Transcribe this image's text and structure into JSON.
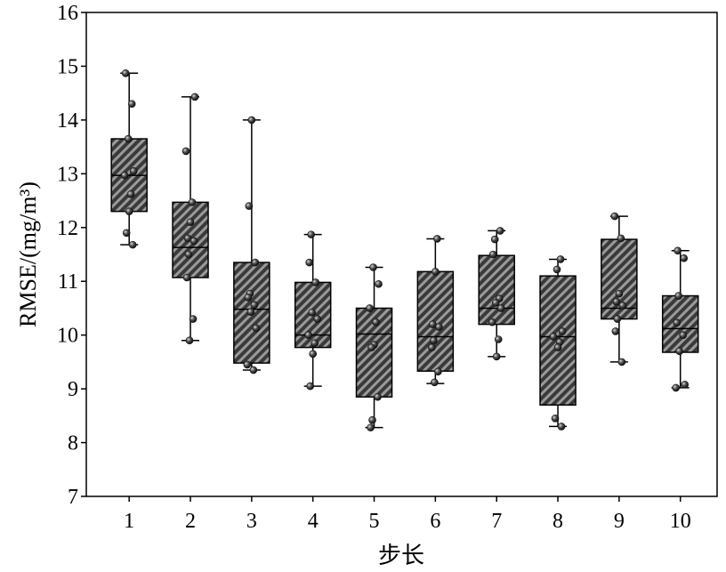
{
  "chart_data": {
    "type": "box",
    "xlabel": "步长",
    "ylabel": "RMSE/(mg/m³)",
    "ylim": [
      7,
      16
    ],
    "xlim": [
      0.3,
      10.6
    ],
    "yticks": [
      7,
      8,
      9,
      10,
      11,
      12,
      13,
      14,
      15,
      16
    ],
    "categories": [
      "1",
      "2",
      "3",
      "4",
      "5",
      "6",
      "7",
      "8",
      "9",
      "10"
    ],
    "grid": false,
    "boxes": [
      {
        "category": "1",
        "whisker_low": 11.68,
        "q1": 12.3,
        "median": 12.97,
        "q3": 13.65,
        "whisker_high": 14.87,
        "points": [
          14.87,
          14.3,
          13.65,
          13.05,
          12.97,
          12.62,
          12.3,
          11.9,
          11.68
        ]
      },
      {
        "category": "2",
        "whisker_low": 9.9,
        "q1": 11.07,
        "median": 11.63,
        "q3": 12.47,
        "whisker_high": 14.43,
        "points": [
          14.43,
          13.42,
          12.47,
          12.1,
          11.8,
          11.75,
          11.5,
          11.07,
          10.3,
          9.9
        ]
      },
      {
        "category": "3",
        "whisker_low": 9.35,
        "q1": 9.48,
        "median": 10.48,
        "q3": 11.35,
        "whisker_high": 14.0,
        "points": [
          14.0,
          12.4,
          11.35,
          10.77,
          10.7,
          10.56,
          10.43,
          10.13,
          9.45,
          9.35
        ]
      },
      {
        "category": "4",
        "whisker_low": 9.05,
        "q1": 9.77,
        "median": 10.0,
        "q3": 10.98,
        "whisker_high": 11.87,
        "points": [
          11.87,
          11.35,
          10.98,
          10.42,
          10.3,
          10.0,
          9.85,
          9.65,
          9.05
        ]
      },
      {
        "category": "5",
        "whisker_low": 8.28,
        "q1": 8.85,
        "median": 10.02,
        "q3": 10.5,
        "whisker_high": 11.26,
        "points": [
          11.26,
          10.95,
          10.5,
          10.24,
          9.82,
          9.77,
          8.85,
          8.42,
          8.28
        ]
      },
      {
        "category": "6",
        "whisker_low": 9.1,
        "q1": 9.33,
        "median": 9.97,
        "q3": 11.18,
        "whisker_high": 11.79,
        "points": [
          11.79,
          11.18,
          10.2,
          10.15,
          9.9,
          9.77,
          9.32,
          9.12
        ]
      },
      {
        "category": "7",
        "whisker_low": 9.6,
        "q1": 10.2,
        "median": 10.5,
        "q3": 11.48,
        "whisker_high": 11.94,
        "points": [
          11.94,
          11.78,
          11.5,
          10.68,
          10.6,
          10.5,
          10.24,
          9.92,
          9.6
        ]
      },
      {
        "category": "8",
        "whisker_low": 8.3,
        "q1": 8.7,
        "median": 9.97,
        "q3": 11.1,
        "whisker_high": 11.41,
        "points": [
          11.41,
          11.22,
          10.07,
          9.97,
          9.87,
          9.77,
          8.45,
          8.3
        ]
      },
      {
        "category": "9",
        "whisker_low": 9.5,
        "q1": 10.3,
        "median": 10.5,
        "q3": 11.78,
        "whisker_high": 12.21,
        "points": [
          12.21,
          11.8,
          10.77,
          10.62,
          10.55,
          10.3,
          10.07,
          9.5
        ]
      },
      {
        "category": "10",
        "whisker_low": 9.02,
        "q1": 9.68,
        "median": 10.12,
        "q3": 10.73,
        "whisker_high": 11.57,
        "points": [
          11.57,
          11.43,
          10.73,
          10.23,
          10.0,
          9.7,
          9.08,
          9.02
        ]
      }
    ]
  },
  "style": {
    "box_fill": "#3a3a3a",
    "hatch_color": "#9a9a9a",
    "line_color": "#000000",
    "point_light": "#dcdcdc",
    "point_mid": "#555555",
    "point_dark": "#111111"
  }
}
